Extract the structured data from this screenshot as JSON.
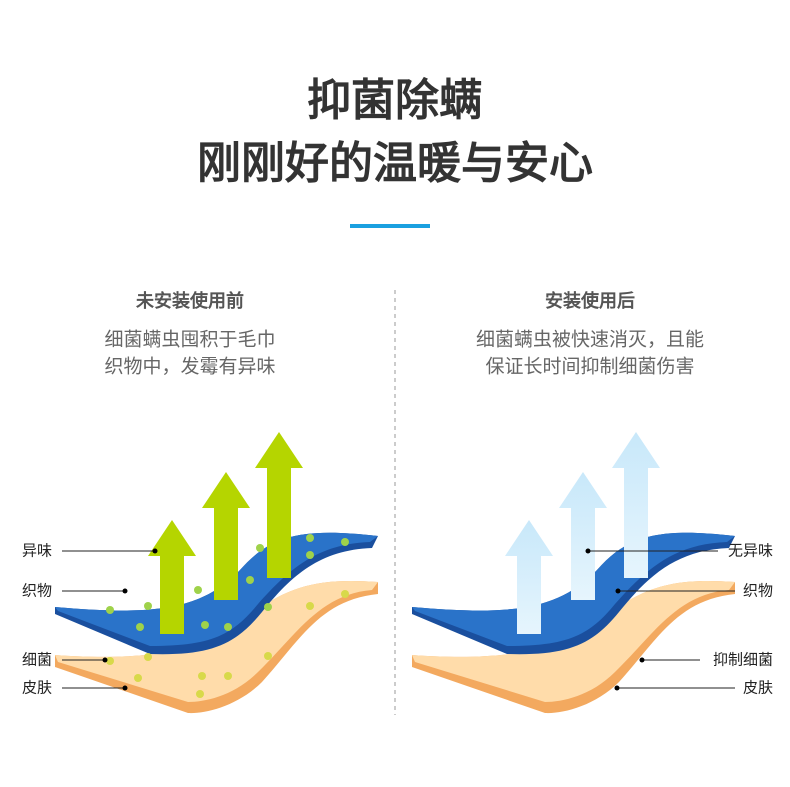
{
  "header": {
    "title_lines": [
      "抑菌除螨",
      "刚刚好的温暖与安心"
    ]
  },
  "panels": [
    {
      "heading": "未安装使用前",
      "description_lines": [
        "细菌螨虫囤积于毛巾",
        "织物中，发霉有异味"
      ],
      "labels": [
        "异味",
        "织物",
        "细菌",
        "皮肤"
      ]
    },
    {
      "heading": "安装使用后",
      "description_lines": [
        "细菌螨虫被快速消灭，且能",
        "保证长时间抑制细菌伤害"
      ],
      "labels": [
        "无异味",
        "织物",
        "抑制细菌",
        "皮肤"
      ]
    }
  ]
}
